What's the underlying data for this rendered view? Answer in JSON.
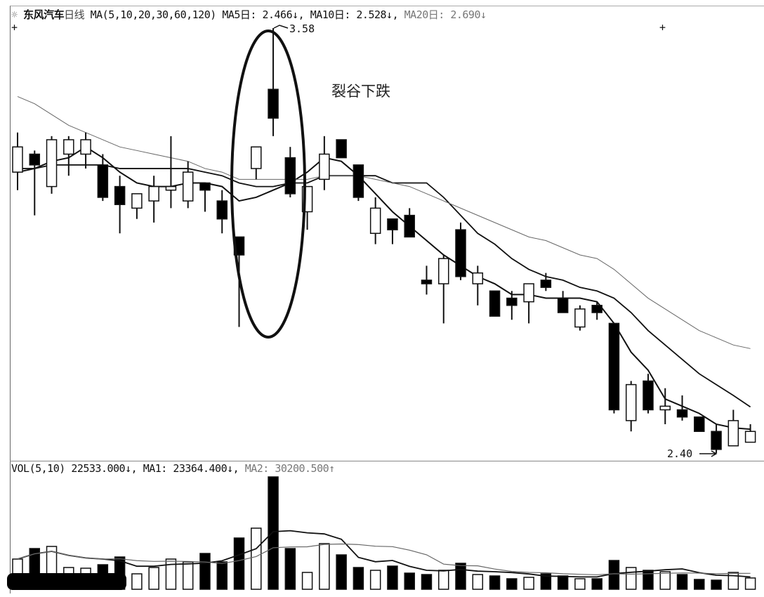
{
  "header": {
    "icon": "settings-star-icon",
    "stock_name": "东风汽车",
    "period": "日线",
    "ma_params": "MA(5,10,20,30,60,120)",
    "ma5_label": "MA5日:",
    "ma5_value": "2.466↓,",
    "ma10_label": "MA10日:",
    "ma10_value": "2.528↓,",
    "ma20_label": "MA20日:",
    "ma20_value": "2.690↓"
  },
  "volume_header": {
    "label": "VOL(5,10)",
    "vol_value": "22533.000↓,",
    "ma1_label": "MA1:",
    "ma1_value": "23364.400↓,",
    "ma2_label": "MA2:",
    "ma2_value": "30200.500↑"
  },
  "annotations": {
    "pattern_note": "裂谷下跌",
    "high_label": "3.58",
    "low_label": "2.40",
    "markers": [
      "+",
      "+"
    ]
  },
  "colors": {
    "up": "#ffffff",
    "down": "#000000",
    "line": "#111111",
    "ma20": "#666666"
  },
  "chart_data": [
    {
      "type": "candlestick",
      "title": "东风汽车 日线",
      "ylim": [
        2.4,
        3.58
      ],
      "grid": false,
      "ohlc": [
        [
          3.18,
          3.29,
          3.13,
          3.25
        ],
        [
          3.23,
          3.24,
          3.06,
          3.2
        ],
        [
          3.14,
          3.28,
          3.12,
          3.27
        ],
        [
          3.23,
          3.28,
          3.17,
          3.27
        ],
        [
          3.23,
          3.29,
          3.19,
          3.27
        ],
        [
          3.2,
          3.23,
          3.1,
          3.11
        ],
        [
          3.14,
          3.17,
          3.01,
          3.09
        ],
        [
          3.08,
          3.12,
          3.05,
          3.12
        ],
        [
          3.1,
          3.17,
          3.04,
          3.14
        ],
        [
          3.13,
          3.28,
          3.08,
          3.14
        ],
        [
          3.1,
          3.21,
          3.08,
          3.18
        ],
        [
          3.15,
          3.15,
          3.07,
          3.13
        ],
        [
          3.1,
          3.13,
          3.01,
          3.05
        ],
        [
          3.0,
          3.0,
          2.75,
          2.95
        ],
        [
          3.19,
          3.25,
          3.16,
          3.25
        ],
        [
          3.41,
          3.58,
          3.28,
          3.33
        ],
        [
          3.22,
          3.25,
          3.11,
          3.12
        ],
        [
          3.07,
          3.14,
          3.02,
          3.14
        ],
        [
          3.16,
          3.28,
          3.13,
          3.23
        ],
        [
          3.27,
          3.27,
          3.22,
          3.22
        ],
        [
          3.2,
          3.2,
          3.1,
          3.11
        ],
        [
          3.01,
          3.11,
          2.98,
          3.08
        ],
        [
          3.05,
          3.05,
          2.98,
          3.02
        ],
        [
          3.06,
          3.08,
          3.0,
          3.0
        ],
        [
          2.88,
          2.92,
          2.84,
          2.87
        ],
        [
          2.87,
          2.95,
          2.76,
          2.94
        ],
        [
          3.02,
          3.04,
          2.88,
          2.89
        ],
        [
          2.87,
          2.92,
          2.81,
          2.9
        ],
        [
          2.85,
          2.85,
          2.78,
          2.78
        ],
        [
          2.83,
          2.85,
          2.77,
          2.81
        ],
        [
          2.82,
          2.87,
          2.76,
          2.87
        ],
        [
          2.88,
          2.9,
          2.85,
          2.86
        ],
        [
          2.83,
          2.85,
          2.79,
          2.79
        ],
        [
          2.75,
          2.81,
          2.74,
          2.8
        ],
        [
          2.81,
          2.82,
          2.77,
          2.79
        ],
        [
          2.76,
          2.76,
          2.51,
          2.52
        ],
        [
          2.49,
          2.6,
          2.46,
          2.59
        ],
        [
          2.6,
          2.62,
          2.51,
          2.52
        ],
        [
          2.52,
          2.58,
          2.48,
          2.53
        ],
        [
          2.52,
          2.56,
          2.49,
          2.5
        ],
        [
          2.5,
          2.5,
          2.46,
          2.46
        ],
        [
          2.46,
          2.48,
          2.4,
          2.41
        ],
        [
          2.42,
          2.52,
          2.42,
          2.49
        ],
        [
          2.43,
          2.48,
          2.43,
          2.46
        ]
      ],
      "series": [
        {
          "name": "MA5",
          "values": [
            3.18,
            3.19,
            3.21,
            3.22,
            3.25,
            3.22,
            3.18,
            3.15,
            3.14,
            3.14,
            3.15,
            3.15,
            3.14,
            3.1,
            3.11,
            3.13,
            3.15,
            3.18,
            3.22,
            3.21,
            3.17,
            3.12,
            3.07,
            3.03,
            2.99,
            2.95,
            2.92,
            2.89,
            2.87,
            2.84,
            2.84,
            2.83,
            2.83,
            2.83,
            2.82,
            2.76,
            2.68,
            2.63,
            2.55,
            2.53,
            2.51,
            2.48,
            2.47,
            2.466
          ]
        },
        {
          "name": "MA10",
          "values": [
            3.19,
            3.19,
            3.2,
            3.2,
            3.2,
            3.2,
            3.19,
            3.19,
            3.19,
            3.19,
            3.19,
            3.18,
            3.17,
            3.15,
            3.14,
            3.14,
            3.15,
            3.15,
            3.17,
            3.17,
            3.17,
            3.17,
            3.15,
            3.15,
            3.15,
            3.11,
            3.06,
            3.01,
            2.98,
            2.94,
            2.91,
            2.89,
            2.88,
            2.86,
            2.85,
            2.83,
            2.79,
            2.74,
            2.7,
            2.66,
            2.62,
            2.59,
            2.56,
            2.528
          ]
        },
        {
          "name": "MA20",
          "values": [
            3.39,
            3.37,
            3.34,
            3.31,
            3.29,
            3.27,
            3.25,
            3.24,
            3.23,
            3.22,
            3.21,
            3.19,
            3.18,
            3.16,
            3.16,
            3.16,
            3.16,
            3.16,
            3.17,
            3.17,
            3.17,
            3.16,
            3.15,
            3.14,
            3.12,
            3.1,
            3.08,
            3.06,
            3.04,
            3.02,
            3.0,
            2.99,
            2.97,
            2.95,
            2.94,
            2.91,
            2.87,
            2.83,
            2.8,
            2.77,
            2.74,
            2.72,
            2.7,
            2.69
          ]
        }
      ]
    },
    {
      "type": "bar",
      "title": "VOL(5,10)",
      "values": [
        60200,
        81200,
        85400,
        43400,
        42000,
        49000,
        64400,
        30800,
        43400,
        60200,
        54600,
        71400,
        54600,
        102200,
        121800,
        224000,
        81200,
        33600,
        91000,
        68600,
        43400,
        37800,
        46200,
        32200,
        29400,
        37800,
        51800,
        29400,
        26600,
        21000,
        23800,
        30800,
        26600,
        21000,
        21000,
        57400,
        43400,
        37800,
        35000,
        29400,
        19600,
        18200,
        33600,
        22533
      ]
    }
  ]
}
